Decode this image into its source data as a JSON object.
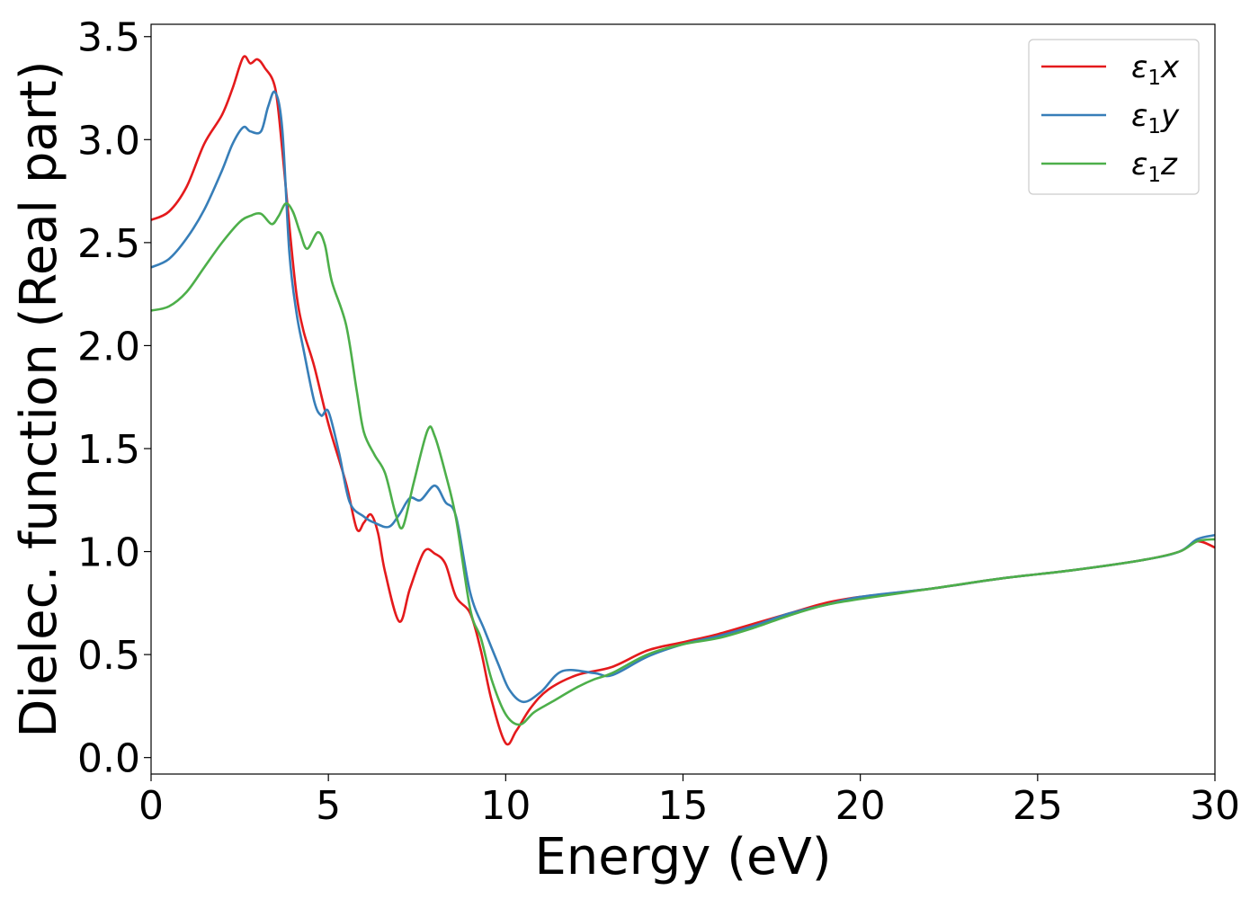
{
  "chart_data": {
    "type": "line",
    "xlabel": "Energy (eV)",
    "ylabel": "Dielec. function (Real part)",
    "xlim": [
      0,
      30
    ],
    "ylim": [
      -0.08,
      3.56
    ],
    "xticks": [
      "0",
      "5",
      "10",
      "15",
      "20",
      "25",
      "30"
    ],
    "yticks": [
      "0.0",
      "0.5",
      "1.0",
      "1.5",
      "2.0",
      "2.5",
      "3.0",
      "3.5"
    ],
    "grid": false,
    "legend_position": "top-right",
    "series": [
      {
        "name": "ε₁x",
        "label_base": "ε",
        "label_sub": "1",
        "label_var": "x",
        "color": "#e41a1c",
        "x": [
          0,
          0.5,
          1,
          1.5,
          2,
          2.3,
          2.6,
          2.8,
          3.0,
          3.2,
          3.5,
          3.7,
          3.9,
          4.1,
          4.3,
          4.6,
          5.0,
          5.5,
          5.8,
          6.0,
          6.2,
          6.4,
          6.6,
          7.0,
          7.3,
          7.7,
          8.0,
          8.3,
          8.6,
          9.0,
          9.3,
          9.6,
          10.0,
          10.3,
          10.7,
          11.2,
          12,
          13,
          14,
          15,
          16,
          17,
          18,
          19,
          20,
          22,
          24,
          26,
          28,
          29,
          29.5,
          30
        ],
        "y": [
          2.61,
          2.65,
          2.77,
          2.98,
          3.12,
          3.25,
          3.4,
          3.37,
          3.39,
          3.35,
          3.25,
          2.95,
          2.58,
          2.25,
          2.07,
          1.9,
          1.62,
          1.33,
          1.11,
          1.14,
          1.18,
          1.09,
          0.9,
          0.66,
          0.82,
          1.0,
          0.99,
          0.94,
          0.78,
          0.7,
          0.52,
          0.28,
          0.07,
          0.13,
          0.24,
          0.33,
          0.4,
          0.44,
          0.52,
          0.56,
          0.6,
          0.65,
          0.7,
          0.75,
          0.78,
          0.82,
          0.87,
          0.91,
          0.96,
          1.0,
          1.05,
          1.02
        ]
      },
      {
        "name": "ε₁y",
        "label_base": "ε",
        "label_sub": "1",
        "label_var": "y",
        "color": "#377eb8",
        "x": [
          0,
          0.5,
          1,
          1.5,
          2,
          2.3,
          2.6,
          2.8,
          3.1,
          3.3,
          3.5,
          3.7,
          3.9,
          4.1,
          4.3,
          4.6,
          4.8,
          5.0,
          5.3,
          5.6,
          6.0,
          6.3,
          6.7,
          7.0,
          7.3,
          7.6,
          8.0,
          8.3,
          8.6,
          9.0,
          9.4,
          9.8,
          10.1,
          10.5,
          11,
          11.6,
          12.5,
          13,
          14,
          15,
          16,
          17,
          18,
          19,
          20,
          22,
          24,
          26,
          28,
          29,
          29.5,
          30
        ],
        "y": [
          2.38,
          2.42,
          2.52,
          2.66,
          2.85,
          2.98,
          3.06,
          3.04,
          3.04,
          3.16,
          3.23,
          3.05,
          2.45,
          2.16,
          1.98,
          1.73,
          1.66,
          1.68,
          1.48,
          1.24,
          1.17,
          1.14,
          1.12,
          1.18,
          1.26,
          1.25,
          1.32,
          1.24,
          1.17,
          0.8,
          0.62,
          0.45,
          0.33,
          0.27,
          0.32,
          0.42,
          0.41,
          0.4,
          0.49,
          0.55,
          0.59,
          0.64,
          0.7,
          0.74,
          0.78,
          0.82,
          0.87,
          0.91,
          0.96,
          1.0,
          1.06,
          1.08
        ]
      },
      {
        "name": "ε₁z",
        "label_base": "ε",
        "label_sub": "1",
        "label_var": "z",
        "color": "#4daf4a",
        "x": [
          0,
          0.5,
          1,
          1.5,
          2,
          2.5,
          2.8,
          3.1,
          3.4,
          3.6,
          3.8,
          4.0,
          4.2,
          4.4,
          4.7,
          4.9,
          5.1,
          5.5,
          5.8,
          6.0,
          6.3,
          6.6,
          6.9,
          7.1,
          7.4,
          7.8,
          8.0,
          8.3,
          8.6,
          9.0,
          9.3,
          9.6,
          10.0,
          10.4,
          10.8,
          11.3,
          12,
          12.5,
          13,
          14,
          15,
          16,
          17,
          18,
          19,
          20,
          22,
          24,
          26,
          28,
          29,
          29.5,
          30
        ],
        "y": [
          2.17,
          2.19,
          2.26,
          2.38,
          2.5,
          2.6,
          2.63,
          2.64,
          2.59,
          2.63,
          2.69,
          2.65,
          2.55,
          2.47,
          2.55,
          2.49,
          2.31,
          2.1,
          1.78,
          1.58,
          1.47,
          1.38,
          1.18,
          1.12,
          1.33,
          1.59,
          1.56,
          1.38,
          1.16,
          0.72,
          0.58,
          0.38,
          0.21,
          0.16,
          0.22,
          0.27,
          0.34,
          0.38,
          0.41,
          0.5,
          0.55,
          0.58,
          0.63,
          0.69,
          0.74,
          0.77,
          0.82,
          0.87,
          0.91,
          0.96,
          1.0,
          1.05,
          1.06
        ]
      }
    ]
  }
}
